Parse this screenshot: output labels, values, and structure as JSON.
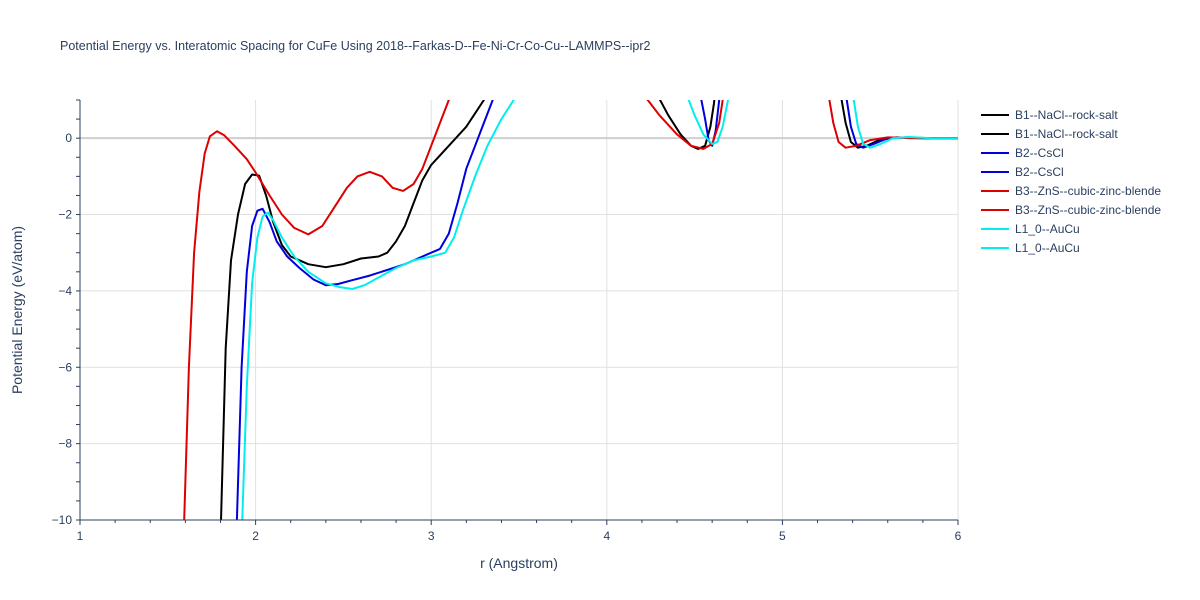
{
  "chart_data": {
    "type": "line",
    "title": "Potential Energy vs. Interatomic Spacing for CuFe Using 2018--Farkas-D--Fe-Ni-Cr-Co-Cu--LAMMPS--ipr2",
    "xlabel": "r (Angstrom)",
    "ylabel": "Potential Energy (eV/atom)",
    "xlim": [
      1,
      6
    ],
    "ylim": [
      -10,
      1
    ],
    "x_ticks": [
      1,
      2,
      3,
      4,
      5,
      6
    ],
    "y_ticks": [
      -10,
      -8,
      -6,
      -4,
      -2,
      0
    ],
    "grid": true,
    "legend_position": "right",
    "series": [
      {
        "name": "B1--NaCl--rock-salt",
        "color": "#000000",
        "points": [
          [
            1.8,
            -10.5
          ],
          [
            1.83,
            -5.5
          ],
          [
            1.86,
            -3.2
          ],
          [
            1.9,
            -2.0
          ],
          [
            1.94,
            -1.2
          ],
          [
            1.98,
            -0.95
          ],
          [
            2.02,
            -0.98
          ],
          [
            2.06,
            -1.5
          ],
          [
            2.1,
            -2.2
          ],
          [
            2.15,
            -2.8
          ],
          [
            2.2,
            -3.1
          ],
          [
            2.3,
            -3.3
          ],
          [
            2.4,
            -3.38
          ],
          [
            2.5,
            -3.3
          ],
          [
            2.6,
            -3.15
          ],
          [
            2.7,
            -3.1
          ],
          [
            2.75,
            -3.0
          ],
          [
            2.8,
            -2.7
          ],
          [
            2.85,
            -2.3
          ],
          [
            2.9,
            -1.7
          ],
          [
            2.95,
            -1.1
          ],
          [
            3.0,
            -0.7
          ],
          [
            3.1,
            -0.2
          ],
          [
            3.2,
            0.3
          ],
          [
            3.3,
            1.0
          ],
          [
            3.34,
            1.4
          ]
        ]
      },
      {
        "name": "B1--NaCl--rock-salt",
        "color": "#000000",
        "points": [
          [
            4.28,
            1.2
          ],
          [
            4.35,
            0.6
          ],
          [
            4.42,
            0.1
          ],
          [
            4.48,
            -0.2
          ],
          [
            4.52,
            -0.28
          ],
          [
            4.56,
            -0.2
          ],
          [
            4.59,
            0.3
          ],
          [
            4.61,
            0.9
          ],
          [
            4.62,
            1.3
          ]
        ]
      },
      {
        "name": "B1--NaCl--rock-salt",
        "color": "#000000",
        "points": [
          [
            5.33,
            1.2
          ],
          [
            5.36,
            0.4
          ],
          [
            5.39,
            -0.1
          ],
          [
            5.43,
            -0.25
          ],
          [
            5.48,
            -0.2
          ],
          [
            5.55,
            -0.05
          ],
          [
            5.65,
            0.02
          ],
          [
            5.8,
            0.0
          ],
          [
            6.0,
            0.0
          ]
        ]
      },
      {
        "name": "B2--CsCl",
        "color": "#0000dd",
        "points": [
          [
            1.89,
            -10.5
          ],
          [
            1.92,
            -6.0
          ],
          [
            1.95,
            -3.5
          ],
          [
            1.98,
            -2.3
          ],
          [
            2.01,
            -1.9
          ],
          [
            2.04,
            -1.85
          ],
          [
            2.08,
            -2.2
          ],
          [
            2.12,
            -2.7
          ],
          [
            2.18,
            -3.1
          ],
          [
            2.25,
            -3.4
          ],
          [
            2.33,
            -3.7
          ],
          [
            2.4,
            -3.85
          ],
          [
            2.47,
            -3.82
          ],
          [
            2.55,
            -3.72
          ],
          [
            2.65,
            -3.6
          ],
          [
            2.75,
            -3.45
          ],
          [
            2.85,
            -3.3
          ],
          [
            2.95,
            -3.1
          ],
          [
            3.05,
            -2.9
          ],
          [
            3.1,
            -2.5
          ],
          [
            3.15,
            -1.7
          ],
          [
            3.2,
            -0.8
          ],
          [
            3.25,
            -0.2
          ],
          [
            3.3,
            0.4
          ],
          [
            3.35,
            1.0
          ],
          [
            3.38,
            1.3
          ]
        ]
      },
      {
        "name": "B2--CsCl",
        "color": "#0000dd",
        "points": [
          [
            4.53,
            1.2
          ],
          [
            4.56,
            0.5
          ],
          [
            4.58,
            -0.05
          ],
          [
            4.6,
            -0.2
          ],
          [
            4.62,
            0.2
          ],
          [
            4.64,
            1.0
          ],
          [
            4.65,
            1.3
          ]
        ]
      },
      {
        "name": "B2--CsCl",
        "color": "#0000dd",
        "points": [
          [
            5.36,
            1.2
          ],
          [
            5.39,
            0.3
          ],
          [
            5.42,
            -0.15
          ],
          [
            5.46,
            -0.25
          ],
          [
            5.52,
            -0.15
          ],
          [
            5.6,
            0.0
          ],
          [
            5.7,
            0.02
          ],
          [
            5.85,
            0.0
          ],
          [
            6.0,
            0.0
          ]
        ]
      },
      {
        "name": "B3--ZnS--cubic-zinc-blende",
        "color": "#dd0000",
        "points": [
          [
            1.59,
            -10.5
          ],
          [
            1.62,
            -6.0
          ],
          [
            1.65,
            -3.0
          ],
          [
            1.68,
            -1.4
          ],
          [
            1.71,
            -0.4
          ],
          [
            1.74,
            0.05
          ],
          [
            1.78,
            0.18
          ],
          [
            1.82,
            0.08
          ],
          [
            1.88,
            -0.2
          ],
          [
            1.95,
            -0.55
          ],
          [
            2.0,
            -0.9
          ],
          [
            2.08,
            -1.5
          ],
          [
            2.15,
            -2.0
          ],
          [
            2.22,
            -2.35
          ],
          [
            2.3,
            -2.52
          ],
          [
            2.38,
            -2.3
          ],
          [
            2.45,
            -1.8
          ],
          [
            2.52,
            -1.3
          ],
          [
            2.58,
            -1.0
          ],
          [
            2.65,
            -0.88
          ],
          [
            2.72,
            -1.0
          ],
          [
            2.78,
            -1.3
          ],
          [
            2.84,
            -1.38
          ],
          [
            2.9,
            -1.2
          ],
          [
            2.95,
            -0.8
          ],
          [
            3.0,
            -0.2
          ],
          [
            3.05,
            0.4
          ],
          [
            3.1,
            1.0
          ],
          [
            3.13,
            1.3
          ]
        ]
      },
      {
        "name": "B3--ZnS--cubic-zinc-blende",
        "color": "#dd0000",
        "points": [
          [
            4.2,
            1.2
          ],
          [
            4.3,
            0.6
          ],
          [
            4.4,
            0.1
          ],
          [
            4.48,
            -0.2
          ],
          [
            4.55,
            -0.28
          ],
          [
            4.6,
            -0.15
          ],
          [
            4.64,
            0.4
          ],
          [
            4.66,
            1.0
          ],
          [
            4.67,
            1.3
          ]
        ]
      },
      {
        "name": "B3--ZnS--cubic-zinc-blende",
        "color": "#dd0000",
        "points": [
          [
            5.26,
            1.2
          ],
          [
            5.29,
            0.4
          ],
          [
            5.32,
            -0.1
          ],
          [
            5.36,
            -0.25
          ],
          [
            5.42,
            -0.2
          ],
          [
            5.5,
            -0.05
          ],
          [
            5.6,
            0.02
          ],
          [
            5.75,
            0.0
          ],
          [
            6.0,
            0.0
          ]
        ]
      },
      {
        "name": "L1_0--AuCu",
        "color": "#00eeee",
        "points": [
          [
            1.92,
            -10.5
          ],
          [
            1.95,
            -6.5
          ],
          [
            1.98,
            -3.8
          ],
          [
            2.01,
            -2.6
          ],
          [
            2.04,
            -2.05
          ],
          [
            2.07,
            -1.95
          ],
          [
            2.1,
            -2.15
          ],
          [
            2.15,
            -2.6
          ],
          [
            2.22,
            -3.1
          ],
          [
            2.3,
            -3.5
          ],
          [
            2.4,
            -3.8
          ],
          [
            2.48,
            -3.9
          ],
          [
            2.55,
            -3.95
          ],
          [
            2.62,
            -3.85
          ],
          [
            2.7,
            -3.65
          ],
          [
            2.8,
            -3.4
          ],
          [
            2.9,
            -3.2
          ],
          [
            3.0,
            -3.1
          ],
          [
            3.08,
            -3.0
          ],
          [
            3.13,
            -2.6
          ],
          [
            3.18,
            -1.9
          ],
          [
            3.25,
            -1.0
          ],
          [
            3.32,
            -0.2
          ],
          [
            3.4,
            0.5
          ],
          [
            3.47,
            1.0
          ],
          [
            3.5,
            1.2
          ]
        ]
      },
      {
        "name": "L1_0--AuCu",
        "color": "#00eeee",
        "points": [
          [
            4.45,
            1.2
          ],
          [
            4.5,
            0.6
          ],
          [
            4.55,
            0.1
          ],
          [
            4.6,
            -0.15
          ],
          [
            4.63,
            -0.1
          ],
          [
            4.66,
            0.3
          ],
          [
            4.69,
            1.0
          ],
          [
            4.7,
            1.3
          ]
        ]
      },
      {
        "name": "L1_0--AuCu",
        "color": "#00eeee",
        "points": [
          [
            5.4,
            1.2
          ],
          [
            5.43,
            0.3
          ],
          [
            5.46,
            -0.15
          ],
          [
            5.5,
            -0.25
          ],
          [
            5.56,
            -0.15
          ],
          [
            5.63,
            0.0
          ],
          [
            5.72,
            0.03
          ],
          [
            5.85,
            0.0
          ],
          [
            6.0,
            0.0
          ]
        ]
      }
    ],
    "legend": [
      {
        "name": "B1--NaCl--rock-salt",
        "color": "#000000"
      },
      {
        "name": "B1--NaCl--rock-salt",
        "color": "#000000"
      },
      {
        "name": "B2--CsCl",
        "color": "#0000dd"
      },
      {
        "name": "B2--CsCl",
        "color": "#0000dd"
      },
      {
        "name": "B3--ZnS--cubic-zinc-blende",
        "color": "#dd0000"
      },
      {
        "name": "B3--ZnS--cubic-zinc-blende",
        "color": "#dd0000"
      },
      {
        "name": "L1_0--AuCu",
        "color": "#00eeee"
      },
      {
        "name": "L1_0--AuCu",
        "color": "#00eeee"
      }
    ]
  }
}
